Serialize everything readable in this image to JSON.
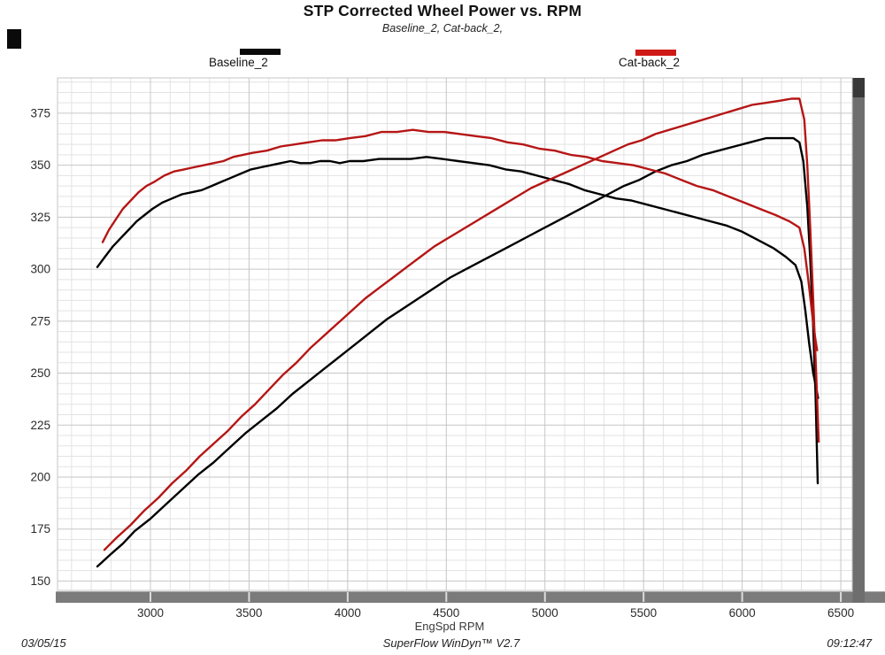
{
  "title": "STP Corrected Wheel Power vs. RPM",
  "subtitle": "Baseline_2, Cat-back_2,",
  "legend": [
    {
      "label": "Baseline_2",
      "color": "#0a0a0a"
    },
    {
      "label": "Cat-back_2",
      "color": "#ce1a17"
    }
  ],
  "footer": {
    "date": "03/05/15",
    "app": "SuperFlow WinDyn™ V2.7",
    "time": "09:12:47"
  },
  "colors": {
    "accent_red": "#b51615",
    "curve_black": "#000000",
    "axis_bar_gray": "#7b7b7b",
    "scrollbar_gray": "#6e6e6e",
    "scrollbar_cap": "#383838",
    "grid_minor": "#e3e3e3",
    "grid_major": "#c6c6c6",
    "tick_text": "#2b2b2b"
  },
  "chart_data": {
    "type": "line",
    "title": "STP Corrected Wheel Power vs. RPM",
    "subtitle": "Baseline_2, Cat-back_2,",
    "xlabel": "EngSpd RPM",
    "ylabel": "",
    "xlim": [
      2529,
      6558
    ],
    "ylim": [
      145.5,
      392
    ],
    "x_ticks": [
      3000,
      3500,
      4000,
      4500,
      5000,
      5500,
      6000,
      6500
    ],
    "y_ticks": [
      150,
      175,
      200,
      225,
      250,
      275,
      300,
      325,
      350,
      375
    ],
    "x_minor_step": 100,
    "y_minor_step": 5,
    "grid": true,
    "legend_position": "top",
    "series": [
      {
        "name": "Baseline_2 (power)",
        "color": "#000000",
        "points": [
          [
            2731,
            157
          ],
          [
            2800,
            163
          ],
          [
            2860,
            168
          ],
          [
            2920,
            174
          ],
          [
            3000,
            180
          ],
          [
            3080,
            187
          ],
          [
            3160,
            194
          ],
          [
            3240,
            201
          ],
          [
            3320,
            207
          ],
          [
            3400,
            214
          ],
          [
            3480,
            221
          ],
          [
            3560,
            227
          ],
          [
            3640,
            233
          ],
          [
            3720,
            240
          ],
          [
            3800,
            246
          ],
          [
            3880,
            252
          ],
          [
            3960,
            258
          ],
          [
            4040,
            264
          ],
          [
            4120,
            270
          ],
          [
            4200,
            276
          ],
          [
            4280,
            281
          ],
          [
            4360,
            286
          ],
          [
            4440,
            291
          ],
          [
            4520,
            296
          ],
          [
            4600,
            300
          ],
          [
            4680,
            304
          ],
          [
            4760,
            308
          ],
          [
            4840,
            312
          ],
          [
            4920,
            316
          ],
          [
            5000,
            320
          ],
          [
            5080,
            324
          ],
          [
            5160,
            328
          ],
          [
            5240,
            332
          ],
          [
            5320,
            336
          ],
          [
            5400,
            340
          ],
          [
            5480,
            343
          ],
          [
            5560,
            347
          ],
          [
            5640,
            350
          ],
          [
            5720,
            352
          ],
          [
            5800,
            355
          ],
          [
            5880,
            357
          ],
          [
            5960,
            359
          ],
          [
            6040,
            361
          ],
          [
            6120,
            363
          ],
          [
            6200,
            363
          ],
          [
            6260,
            363
          ],
          [
            6290,
            361
          ],
          [
            6310,
            352
          ],
          [
            6330,
            330
          ],
          [
            6345,
            305
          ],
          [
            6360,
            272
          ],
          [
            6372,
            240
          ],
          [
            6383,
            197
          ]
        ]
      },
      {
        "name": "Baseline_2 (torque)",
        "color": "#000000",
        "points": [
          [
            2731,
            301
          ],
          [
            2770,
            306
          ],
          [
            2810,
            311
          ],
          [
            2850,
            315
          ],
          [
            2890,
            319
          ],
          [
            2930,
            323
          ],
          [
            2970,
            326
          ],
          [
            3010,
            329
          ],
          [
            3060,
            332
          ],
          [
            3110,
            334
          ],
          [
            3160,
            336
          ],
          [
            3210,
            337
          ],
          [
            3260,
            338
          ],
          [
            3310,
            340
          ],
          [
            3360,
            342
          ],
          [
            3410,
            344
          ],
          [
            3460,
            346
          ],
          [
            3510,
            348
          ],
          [
            3560,
            349
          ],
          [
            3610,
            350
          ],
          [
            3660,
            351
          ],
          [
            3710,
            352
          ],
          [
            3760,
            351
          ],
          [
            3810,
            351
          ],
          [
            3860,
            352
          ],
          [
            3910,
            352
          ],
          [
            3960,
            351
          ],
          [
            4010,
            352
          ],
          [
            4080,
            352
          ],
          [
            4160,
            353
          ],
          [
            4240,
            353
          ],
          [
            4320,
            353
          ],
          [
            4400,
            354
          ],
          [
            4480,
            353
          ],
          [
            4560,
            352
          ],
          [
            4640,
            351
          ],
          [
            4720,
            350
          ],
          [
            4800,
            348
          ],
          [
            4880,
            347
          ],
          [
            4960,
            345
          ],
          [
            5040,
            343
          ],
          [
            5120,
            341
          ],
          [
            5200,
            338
          ],
          [
            5280,
            336
          ],
          [
            5360,
            334
          ],
          [
            5440,
            333
          ],
          [
            5520,
            331
          ],
          [
            5600,
            329
          ],
          [
            5680,
            327
          ],
          [
            5760,
            325
          ],
          [
            5840,
            323
          ],
          [
            5920,
            321
          ],
          [
            6000,
            318
          ],
          [
            6080,
            314
          ],
          [
            6160,
            310
          ],
          [
            6220,
            306
          ],
          [
            6270,
            302
          ],
          [
            6300,
            294
          ],
          [
            6320,
            280
          ],
          [
            6340,
            264
          ],
          [
            6360,
            250
          ],
          [
            6375,
            243
          ],
          [
            6385,
            238
          ]
        ]
      },
      {
        "name": "Cat-back_2 (power)",
        "color": "#b51615",
        "points": [
          [
            2767,
            165
          ],
          [
            2830,
            171
          ],
          [
            2900,
            177
          ],
          [
            2970,
            184
          ],
          [
            3040,
            190
          ],
          [
            3110,
            197
          ],
          [
            3180,
            203
          ],
          [
            3250,
            210
          ],
          [
            3320,
            216
          ],
          [
            3390,
            222
          ],
          [
            3460,
            229
          ],
          [
            3530,
            235
          ],
          [
            3600,
            242
          ],
          [
            3670,
            249
          ],
          [
            3740,
            255
          ],
          [
            3810,
            262
          ],
          [
            3880,
            268
          ],
          [
            3950,
            274
          ],
          [
            4020,
            280
          ],
          [
            4090,
            286
          ],
          [
            4160,
            291
          ],
          [
            4230,
            296
          ],
          [
            4300,
            301
          ],
          [
            4370,
            306
          ],
          [
            4440,
            311
          ],
          [
            4510,
            315
          ],
          [
            4580,
            319
          ],
          [
            4650,
            323
          ],
          [
            4720,
            327
          ],
          [
            4790,
            331
          ],
          [
            4860,
            335
          ],
          [
            4930,
            339
          ],
          [
            5000,
            342
          ],
          [
            5070,
            345
          ],
          [
            5140,
            348
          ],
          [
            5210,
            351
          ],
          [
            5280,
            354
          ],
          [
            5350,
            357
          ],
          [
            5420,
            360
          ],
          [
            5490,
            362
          ],
          [
            5560,
            365
          ],
          [
            5630,
            367
          ],
          [
            5700,
            369
          ],
          [
            5770,
            371
          ],
          [
            5840,
            373
          ],
          [
            5910,
            375
          ],
          [
            5980,
            377
          ],
          [
            6050,
            379
          ],
          [
            6120,
            380
          ],
          [
            6190,
            381
          ],
          [
            6250,
            382
          ],
          [
            6290,
            382
          ],
          [
            6315,
            372
          ],
          [
            6330,
            350
          ],
          [
            6345,
            320
          ],
          [
            6360,
            285
          ],
          [
            6375,
            250
          ],
          [
            6388,
            217
          ]
        ]
      },
      {
        "name": "Cat-back_2 (torque)",
        "color": "#b51615",
        "points": [
          [
            2758,
            313
          ],
          [
            2790,
            319
          ],
          [
            2825,
            324
          ],
          [
            2860,
            329
          ],
          [
            2900,
            333
          ],
          [
            2940,
            337
          ],
          [
            2980,
            340
          ],
          [
            3020,
            342
          ],
          [
            3070,
            345
          ],
          [
            3120,
            347
          ],
          [
            3170,
            348
          ],
          [
            3220,
            349
          ],
          [
            3270,
            350
          ],
          [
            3320,
            351
          ],
          [
            3370,
            352
          ],
          [
            3420,
            354
          ],
          [
            3470,
            355
          ],
          [
            3520,
            356
          ],
          [
            3590,
            357
          ],
          [
            3660,
            359
          ],
          [
            3730,
            360
          ],
          [
            3800,
            361
          ],
          [
            3870,
            362
          ],
          [
            3940,
            362
          ],
          [
            4010,
            363
          ],
          [
            4090,
            364
          ],
          [
            4170,
            366
          ],
          [
            4250,
            366
          ],
          [
            4330,
            367
          ],
          [
            4410,
            366
          ],
          [
            4490,
            366
          ],
          [
            4570,
            365
          ],
          [
            4650,
            364
          ],
          [
            4730,
            363
          ],
          [
            4810,
            361
          ],
          [
            4890,
            360
          ],
          [
            4970,
            358
          ],
          [
            5050,
            357
          ],
          [
            5130,
            355
          ],
          [
            5210,
            354
          ],
          [
            5290,
            352
          ],
          [
            5370,
            351
          ],
          [
            5450,
            350
          ],
          [
            5530,
            348
          ],
          [
            5610,
            346
          ],
          [
            5690,
            343
          ],
          [
            5770,
            340
          ],
          [
            5850,
            338
          ],
          [
            5930,
            335
          ],
          [
            6010,
            332
          ],
          [
            6090,
            329
          ],
          [
            6170,
            326
          ],
          [
            6240,
            323
          ],
          [
            6290,
            320
          ],
          [
            6315,
            310
          ],
          [
            6335,
            295
          ],
          [
            6355,
            278
          ],
          [
            6370,
            267
          ],
          [
            6380,
            261
          ]
        ]
      }
    ]
  }
}
